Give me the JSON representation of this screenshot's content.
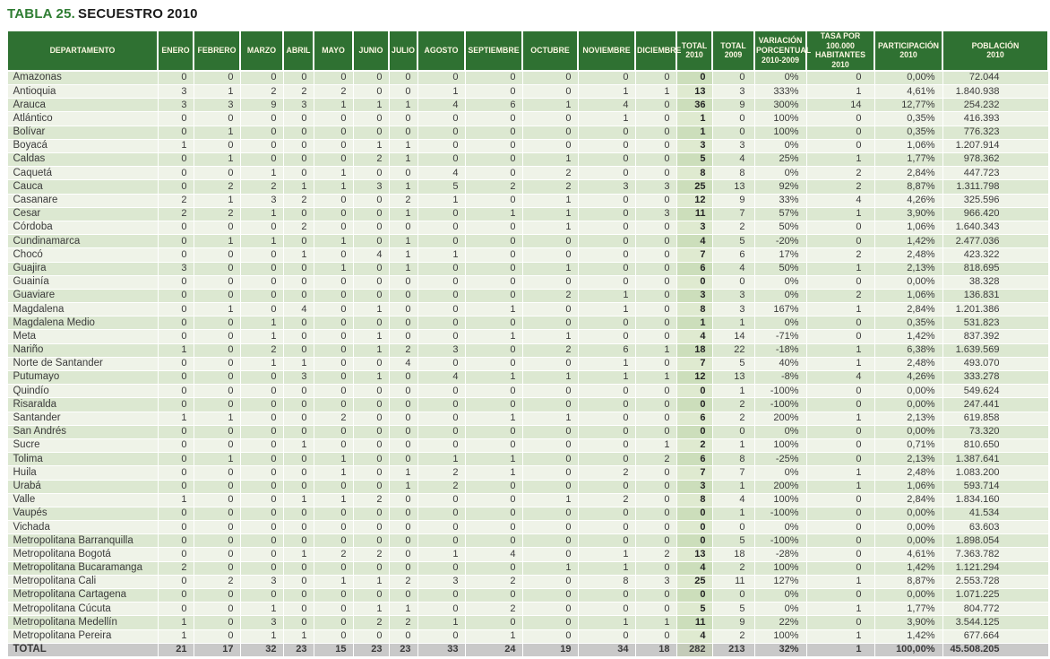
{
  "title": {
    "number": "TABLA 25.",
    "name": "SECUESTRO 2010"
  },
  "colors": {
    "header_bg": "#2f7132",
    "header_text": "#faf6e0",
    "row_green": "#dce8d1",
    "row_pale": "#eff3e8",
    "total_col_green": "#ccdebb",
    "total_col_pale": "#dfead0",
    "total_row_bg": "#c9c9c9",
    "title_green": "#2f7d33",
    "title_dark": "#1b1b1b"
  },
  "table": {
    "header": [
      {
        "key": "departamento",
        "lines": [
          "DEPARTAMENTO"
        ]
      },
      {
        "key": "enero",
        "lines": [
          "ENERO"
        ]
      },
      {
        "key": "febrero",
        "lines": [
          "FEBRERO"
        ]
      },
      {
        "key": "marzo",
        "lines": [
          "MARZO"
        ]
      },
      {
        "key": "abril",
        "lines": [
          "ABRIL"
        ]
      },
      {
        "key": "mayo",
        "lines": [
          "MAYO"
        ]
      },
      {
        "key": "junio",
        "lines": [
          "JUNIO"
        ]
      },
      {
        "key": "julio",
        "lines": [
          "JULIO"
        ]
      },
      {
        "key": "agosto",
        "lines": [
          "AGOSTO"
        ]
      },
      {
        "key": "septiembre",
        "lines": [
          "SEPTIEMBRE"
        ]
      },
      {
        "key": "octubre",
        "lines": [
          "OCTUBRE"
        ]
      },
      {
        "key": "noviembre",
        "lines": [
          "NOVIEMBRE"
        ]
      },
      {
        "key": "diciembre",
        "lines": [
          "DICIEMBRE"
        ]
      },
      {
        "key": "total-2010",
        "lines": [
          "TOTAL",
          "2010"
        ]
      },
      {
        "key": "total-2009",
        "lines": [
          "TOTAL",
          "2009"
        ]
      },
      {
        "key": "variacion-porcentual",
        "lines": [
          "VARIACIÓN",
          "PORCENTUAL",
          "2010-2009"
        ]
      },
      {
        "key": "tasa-100000-habitantes",
        "lines": [
          "TASA POR 100.000",
          "HABITANTES 2010"
        ]
      },
      {
        "key": "participacion",
        "lines": [
          "PARTICIPACIÓN",
          "2010"
        ]
      },
      {
        "key": "poblacion",
        "lines": [
          "POBLACIÓN",
          "2010"
        ]
      }
    ],
    "rows": [
      [
        "Amazonas",
        "0",
        "0",
        "0",
        "0",
        "0",
        "0",
        "0",
        "0",
        "0",
        "0",
        "0",
        "0",
        "0",
        "0",
        "0%",
        "0",
        "0,00%",
        "72.044"
      ],
      [
        "Antioquia",
        "3",
        "1",
        "2",
        "2",
        "2",
        "0",
        "0",
        "1",
        "0",
        "0",
        "1",
        "1",
        "13",
        "3",
        "333%",
        "1",
        "4,61%",
        "1.840.938"
      ],
      [
        "Arauca",
        "3",
        "3",
        "9",
        "3",
        "1",
        "1",
        "1",
        "4",
        "6",
        "1",
        "4",
        "0",
        "36",
        "9",
        "300%",
        "14",
        "12,77%",
        "254.232"
      ],
      [
        "Atlántico",
        "0",
        "0",
        "0",
        "0",
        "0",
        "0",
        "0",
        "0",
        "0",
        "0",
        "1",
        "0",
        "1",
        "0",
        "100%",
        "0",
        "0,35%",
        "416.393"
      ],
      [
        "Bolívar",
        "0",
        "1",
        "0",
        "0",
        "0",
        "0",
        "0",
        "0",
        "0",
        "0",
        "0",
        "0",
        "1",
        "0",
        "100%",
        "0",
        "0,35%",
        "776.323"
      ],
      [
        "Boyacá",
        "1",
        "0",
        "0",
        "0",
        "0",
        "1",
        "1",
        "0",
        "0",
        "0",
        "0",
        "0",
        "3",
        "3",
        "0%",
        "0",
        "1,06%",
        "1.207.914"
      ],
      [
        "Caldas",
        "0",
        "1",
        "0",
        "0",
        "0",
        "2",
        "1",
        "0",
        "0",
        "1",
        "0",
        "0",
        "5",
        "4",
        "25%",
        "1",
        "1,77%",
        "978.362"
      ],
      [
        "Caquetá",
        "0",
        "0",
        "1",
        "0",
        "1",
        "0",
        "0",
        "4",
        "0",
        "2",
        "0",
        "0",
        "8",
        "8",
        "0%",
        "2",
        "2,84%",
        "447.723"
      ],
      [
        "Cauca",
        "0",
        "2",
        "2",
        "1",
        "1",
        "3",
        "1",
        "5",
        "2",
        "2",
        "3",
        "3",
        "25",
        "13",
        "92%",
        "2",
        "8,87%",
        "1.311.798"
      ],
      [
        "Casanare",
        "2",
        "1",
        "3",
        "2",
        "0",
        "0",
        "2",
        "1",
        "0",
        "1",
        "0",
        "0",
        "12",
        "9",
        "33%",
        "4",
        "4,26%",
        "325.596"
      ],
      [
        "Cesar",
        "2",
        "2",
        "1",
        "0",
        "0",
        "0",
        "1",
        "0",
        "1",
        "1",
        "0",
        "3",
        "11",
        "7",
        "57%",
        "1",
        "3,90%",
        "966.420"
      ],
      [
        "Córdoba",
        "0",
        "0",
        "0",
        "2",
        "0",
        "0",
        "0",
        "0",
        "0",
        "1",
        "0",
        "0",
        "3",
        "2",
        "50%",
        "0",
        "1,06%",
        "1.640.343"
      ],
      [
        "Cundinamarca",
        "0",
        "1",
        "1",
        "0",
        "1",
        "0",
        "1",
        "0",
        "0",
        "0",
        "0",
        "0",
        "4",
        "5",
        "-20%",
        "0",
        "1,42%",
        "2.477.036"
      ],
      [
        "Chocó",
        "0",
        "0",
        "0",
        "1",
        "0",
        "4",
        "1",
        "1",
        "0",
        "0",
        "0",
        "0",
        "7",
        "6",
        "17%",
        "2",
        "2,48%",
        "423.322"
      ],
      [
        "Guajira",
        "3",
        "0",
        "0",
        "0",
        "1",
        "0",
        "1",
        "0",
        "0",
        "1",
        "0",
        "0",
        "6",
        "4",
        "50%",
        "1",
        "2,13%",
        "818.695"
      ],
      [
        "Guainía",
        "0",
        "0",
        "0",
        "0",
        "0",
        "0",
        "0",
        "0",
        "0",
        "0",
        "0",
        "0",
        "0",
        "0",
        "0%",
        "0",
        "0,00%",
        "38.328"
      ],
      [
        "Guaviare",
        "0",
        "0",
        "0",
        "0",
        "0",
        "0",
        "0",
        "0",
        "0",
        "2",
        "1",
        "0",
        "3",
        "3",
        "0%",
        "2",
        "1,06%",
        "136.831"
      ],
      [
        "Magdalena",
        "0",
        "1",
        "0",
        "4",
        "0",
        "1",
        "0",
        "0",
        "1",
        "0",
        "1",
        "0",
        "8",
        "3",
        "167%",
        "1",
        "2,84%",
        "1.201.386"
      ],
      [
        "Magdalena Medio",
        "0",
        "0",
        "1",
        "0",
        "0",
        "0",
        "0",
        "0",
        "0",
        "0",
        "0",
        "0",
        "1",
        "1",
        "0%",
        "0",
        "0,35%",
        "531.823"
      ],
      [
        "Meta",
        "0",
        "0",
        "1",
        "0",
        "0",
        "1",
        "0",
        "0",
        "1",
        "1",
        "0",
        "0",
        "4",
        "14",
        "-71%",
        "0",
        "1,42%",
        "837.392"
      ],
      [
        "Nariño",
        "1",
        "0",
        "2",
        "0",
        "0",
        "1",
        "2",
        "3",
        "0",
        "2",
        "6",
        "1",
        "18",
        "22",
        "-18%",
        "1",
        "6,38%",
        "1.639.569"
      ],
      [
        "Norte de Santander",
        "0",
        "0",
        "1",
        "1",
        "0",
        "0",
        "4",
        "0",
        "0",
        "0",
        "1",
        "0",
        "7",
        "5",
        "40%",
        "1",
        "2,48%",
        "493.070"
      ],
      [
        "Putumayo",
        "0",
        "0",
        "0",
        "3",
        "0",
        "1",
        "0",
        "4",
        "1",
        "1",
        "1",
        "1",
        "12",
        "13",
        "-8%",
        "4",
        "4,26%",
        "333.278"
      ],
      [
        "Quindío",
        "0",
        "0",
        "0",
        "0",
        "0",
        "0",
        "0",
        "0",
        "0",
        "0",
        "0",
        "0",
        "0",
        "1",
        "-100%",
        "0",
        "0,00%",
        "549.624"
      ],
      [
        "Risaralda",
        "0",
        "0",
        "0",
        "0",
        "0",
        "0",
        "0",
        "0",
        "0",
        "0",
        "0",
        "0",
        "0",
        "2",
        "-100%",
        "0",
        "0,00%",
        "247.441"
      ],
      [
        "Santander",
        "1",
        "1",
        "0",
        "0",
        "2",
        "0",
        "0",
        "0",
        "1",
        "1",
        "0",
        "0",
        "6",
        "2",
        "200%",
        "1",
        "2,13%",
        "619.858"
      ],
      [
        "San Andrés",
        "0",
        "0",
        "0",
        "0",
        "0",
        "0",
        "0",
        "0",
        "0",
        "0",
        "0",
        "0",
        "0",
        "0",
        "0%",
        "0",
        "0,00%",
        "73.320"
      ],
      [
        "Sucre",
        "0",
        "0",
        "0",
        "1",
        "0",
        "0",
        "0",
        "0",
        "0",
        "0",
        "0",
        "1",
        "2",
        "1",
        "100%",
        "0",
        "0,71%",
        "810.650"
      ],
      [
        "Tolima",
        "0",
        "1",
        "0",
        "0",
        "1",
        "0",
        "0",
        "1",
        "1",
        "0",
        "0",
        "2",
        "6",
        "8",
        "-25%",
        "0",
        "2,13%",
        "1.387.641"
      ],
      [
        "Huila",
        "0",
        "0",
        "0",
        "0",
        "1",
        "0",
        "1",
        "2",
        "1",
        "0",
        "2",
        "0",
        "7",
        "7",
        "0%",
        "1",
        "2,48%",
        "1.083.200"
      ],
      [
        "Urabá",
        "0",
        "0",
        "0",
        "0",
        "0",
        "0",
        "1",
        "2",
        "0",
        "0",
        "0",
        "0",
        "3",
        "1",
        "200%",
        "1",
        "1,06%",
        "593.714"
      ],
      [
        "Valle",
        "1",
        "0",
        "0",
        "1",
        "1",
        "2",
        "0",
        "0",
        "0",
        "1",
        "2",
        "0",
        "8",
        "4",
        "100%",
        "0",
        "2,84%",
        "1.834.160"
      ],
      [
        "Vaupés",
        "0",
        "0",
        "0",
        "0",
        "0",
        "0",
        "0",
        "0",
        "0",
        "0",
        "0",
        "0",
        "0",
        "1",
        "-100%",
        "0",
        "0,00%",
        "41.534"
      ],
      [
        "Vichada",
        "0",
        "0",
        "0",
        "0",
        "0",
        "0",
        "0",
        "0",
        "0",
        "0",
        "0",
        "0",
        "0",
        "0",
        "0%",
        "0",
        "0,00%",
        "63.603"
      ],
      [
        "Metropolitana Barranquilla",
        "0",
        "0",
        "0",
        "0",
        "0",
        "0",
        "0",
        "0",
        "0",
        "0",
        "0",
        "0",
        "0",
        "5",
        "-100%",
        "0",
        "0,00%",
        "1.898.054"
      ],
      [
        "Metropolitana Bogotá",
        "0",
        "0",
        "0",
        "1",
        "2",
        "2",
        "0",
        "1",
        "4",
        "0",
        "1",
        "2",
        "13",
        "18",
        "-28%",
        "0",
        "4,61%",
        "7.363.782"
      ],
      [
        "Metropolitana Bucaramanga",
        "2",
        "0",
        "0",
        "0",
        "0",
        "0",
        "0",
        "0",
        "0",
        "1",
        "1",
        "0",
        "4",
        "2",
        "100%",
        "0",
        "1,42%",
        "1.121.294"
      ],
      [
        "Metropolitana Cali",
        "0",
        "2",
        "3",
        "0",
        "1",
        "1",
        "2",
        "3",
        "2",
        "0",
        "8",
        "3",
        "25",
        "11",
        "127%",
        "1",
        "8,87%",
        "2.553.728"
      ],
      [
        "Metropolitana Cartagena",
        "0",
        "0",
        "0",
        "0",
        "0",
        "0",
        "0",
        "0",
        "0",
        "0",
        "0",
        "0",
        "0",
        "0",
        "0%",
        "0",
        "0,00%",
        "1.071.225"
      ],
      [
        "Metropolitana Cúcuta",
        "0",
        "0",
        "1",
        "0",
        "0",
        "1",
        "1",
        "0",
        "2",
        "0",
        "0",
        "0",
        "5",
        "5",
        "0%",
        "1",
        "1,77%",
        "804.772"
      ],
      [
        "Metropolitana Medellín",
        "1",
        "0",
        "3",
        "0",
        "0",
        "2",
        "2",
        "1",
        "0",
        "0",
        "1",
        "1",
        "11",
        "9",
        "22%",
        "0",
        "3,90%",
        "3.544.125"
      ],
      [
        "Metropolitana Pereira",
        "1",
        "0",
        "1",
        "1",
        "0",
        "0",
        "0",
        "0",
        "1",
        "0",
        "0",
        "0",
        "4",
        "2",
        "100%",
        "1",
        "1,42%",
        "677.664"
      ]
    ],
    "total_row": [
      "TOTAL",
      "21",
      "17",
      "32",
      "23",
      "15",
      "23",
      "23",
      "33",
      "24",
      "19",
      "34",
      "18",
      "282",
      "213",
      "32%",
      "1",
      "100,00%",
      "45.508.205"
    ]
  }
}
